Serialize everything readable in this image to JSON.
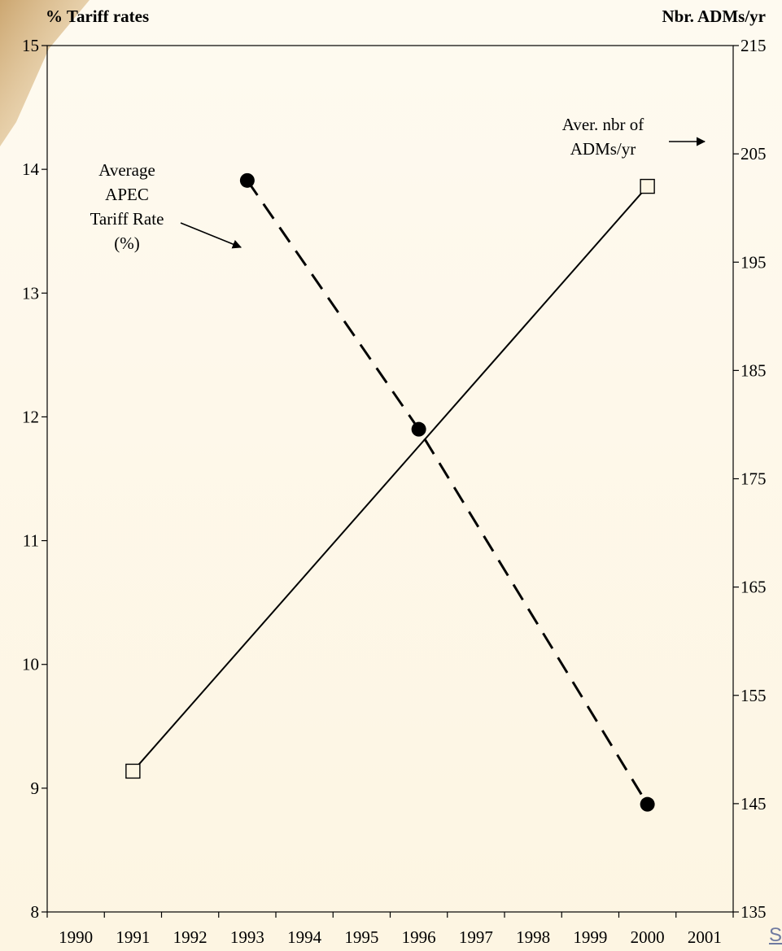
{
  "chart_data": {
    "type": "line",
    "title": "",
    "left_axis": {
      "title": "% Tariff rates",
      "min": 8,
      "max": 15,
      "ticks": [
        8,
        9,
        10,
        11,
        12,
        13,
        14,
        15
      ]
    },
    "right_axis": {
      "title": "Nbr. ADMs/yr",
      "min": 135,
      "max": 215,
      "ticks": [
        135,
        145,
        155,
        165,
        175,
        185,
        195,
        205,
        215
      ]
    },
    "x_axis": {
      "categories": [
        "1990",
        "1991",
        "1992",
        "1993",
        "1994",
        "1995",
        "1996",
        "1997",
        "1998",
        "1999",
        "2000",
        "2001"
      ]
    },
    "series": [
      {
        "axis": "left",
        "style": "dashed",
        "marker": "filled-circle",
        "color": "#000000",
        "points": [
          {
            "x": 1993,
            "y": 13.91
          },
          {
            "x": 1996,
            "y": 11.9
          },
          {
            "x": 2000,
            "y": 8.87
          }
        ]
      },
      {
        "axis": "right",
        "style": "solid",
        "marker": "open-square",
        "color": "#000000",
        "points": [
          {
            "x": 1991,
            "y": 148
          },
          {
            "x": 2000,
            "y": 202
          }
        ]
      }
    ],
    "annotations": [
      {
        "lines": [
          "Average",
          "APEC",
          "Tariff Rate",
          "(%)"
        ],
        "target_series": 0
      },
      {
        "lines": [
          "Aver. nbr of",
          "ADMs/yr"
        ],
        "target_series": 1
      }
    ],
    "grid": false
  },
  "source_link": {
    "label": "S"
  },
  "background": {
    "color": "#fdf6e3",
    "corner_accent": "#c9a26a"
  }
}
